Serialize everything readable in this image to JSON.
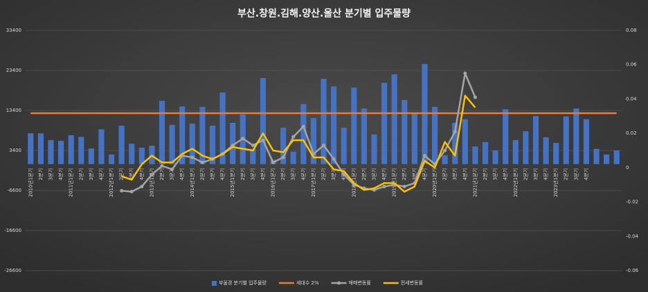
{
  "chart_data": {
    "type": "bar",
    "title": "부산.창원.김해.양산.울산 분기별 입주물량",
    "categories": [
      "2010년1분기",
      "2분기",
      "3분기",
      "4분기",
      "2011년1분기",
      "2분기",
      "3분기",
      "4분기",
      "2012년1분기",
      "2분기",
      "3분기",
      "4분기",
      "2013년1분기",
      "2분기",
      "3분기",
      "4분기",
      "2014년1분기",
      "2분기",
      "3분기",
      "4분기",
      "2015년1분기",
      "2분기",
      "3분기",
      "4분기",
      "2016년1분기",
      "2분기",
      "3분기",
      "4분기",
      "2017년1분기",
      "2분기",
      "3분기",
      "4분기",
      "2018년1분기",
      "2분기",
      "3분기",
      "4분기",
      "2019년1분기",
      "2분기",
      "3분기",
      "4분기",
      "2020년1분기",
      "2분기",
      "3분기",
      "4분기",
      "2021년1분기",
      "2분기",
      "3분기",
      "4분기",
      "2022년1분기",
      "2분기",
      "3분기",
      "4분기",
      "2023년1분기",
      "2분기",
      "3분기",
      "4분기",
      null,
      null,
      null
    ],
    "series": [
      {
        "name": "부울경 분기별 입주물량",
        "type": "bar",
        "color": "#4472c4",
        "values": [
          7700,
          7700,
          6000,
          5800,
          7200,
          6800,
          3900,
          8700,
          2400,
          9600,
          5100,
          4100,
          4600,
          15800,
          9800,
          14400,
          10100,
          14300,
          9600,
          17900,
          10300,
          12400,
          3800,
          21500,
          1100,
          9100,
          3100,
          15000,
          11500,
          21300,
          19400,
          9100,
          19100,
          13900,
          7400,
          20300,
          22400,
          16000,
          12900,
          25000,
          14300,
          2200,
          10300,
          11200,
          4400,
          5500,
          3400,
          13700,
          6000,
          8200,
          12000,
          6700,
          5300,
          11900,
          13900,
          11200,
          3800,
          2400,
          3400
        ]
      },
      {
        "name": "세대수 2%",
        "type": "line",
        "color": "#ed7d31",
        "values": [
          12700,
          12700,
          12700,
          12700,
          12700,
          12700,
          12700,
          12700,
          12700,
          12700,
          12700,
          12700,
          12700,
          12700,
          12700,
          12700,
          12700,
          12700,
          12700,
          12700,
          12700,
          12700,
          12700,
          12700,
          12700,
          12700,
          12700,
          12700,
          12700,
          12700,
          12700,
          12700,
          12700,
          12700,
          12700,
          12700,
          12700,
          12700,
          12700,
          12700,
          12700,
          12700,
          12700,
          12700,
          12700,
          12700,
          12700,
          12700,
          12700,
          12700,
          12700,
          12700,
          12700,
          12700,
          12700,
          12700,
          12700,
          12700,
          12700
        ]
      },
      {
        "name": "매매변동률",
        "type": "line",
        "axis": "y2",
        "marker": true,
        "color": "#a5a5a5",
        "values": [
          null,
          null,
          null,
          null,
          null,
          null,
          null,
          null,
          null,
          -0.0135,
          -0.014,
          -0.011,
          -0.004,
          0.001,
          -0.001,
          0.007,
          0.006,
          0.003,
          0.005,
          0.008,
          0.013,
          0.017,
          0.013,
          0.016,
          0.003,
          0.006,
          0.018,
          0.024,
          0.008,
          0.013,
          0.005,
          -0.004,
          -0.01,
          -0.012,
          -0.013,
          -0.011,
          -0.01,
          -0.011,
          -0.009,
          0.007,
          0.002,
          0.01,
          0.021,
          0.055,
          0.041,
          null,
          null,
          null,
          null,
          null,
          null,
          null,
          null,
          null,
          null,
          null,
          null,
          null,
          null
        ]
      },
      {
        "name": "전세변동률",
        "type": "line",
        "axis": "y2",
        "color": "#ffc000",
        "values": [
          null,
          null,
          null,
          null,
          null,
          null,
          null,
          null,
          null,
          -0.005,
          -0.007,
          0.002,
          0.007,
          0.003,
          0.003,
          0.008,
          0.011,
          0.007,
          0.005,
          0.008,
          0.012,
          0.011,
          0.01,
          0.02,
          0.01,
          0.009,
          0.016,
          0.016,
          0.006,
          0.006,
          -0.001,
          -0.002,
          -0.009,
          -0.013,
          -0.012,
          -0.009,
          -0.009,
          -0.014,
          -0.011,
          0.004,
          0.0,
          0.015,
          0.007,
          0.042,
          0.035,
          null,
          null,
          null,
          null,
          null,
          null,
          null,
          null,
          null,
          null,
          null,
          null,
          null,
          null
        ]
      }
    ],
    "ylim": [
      -26600,
      33400
    ],
    "yticks": [
      -26600,
      -16600,
      -6600,
      3400,
      13400,
      23400,
      33400
    ],
    "y2lim": [
      -0.06,
      0.08
    ],
    "y2ticks": [
      -0.06,
      -0.04,
      -0.02,
      0,
      0.02,
      0.04,
      0.06,
      0.08
    ],
    "grid": true,
    "legend": "bottom"
  }
}
